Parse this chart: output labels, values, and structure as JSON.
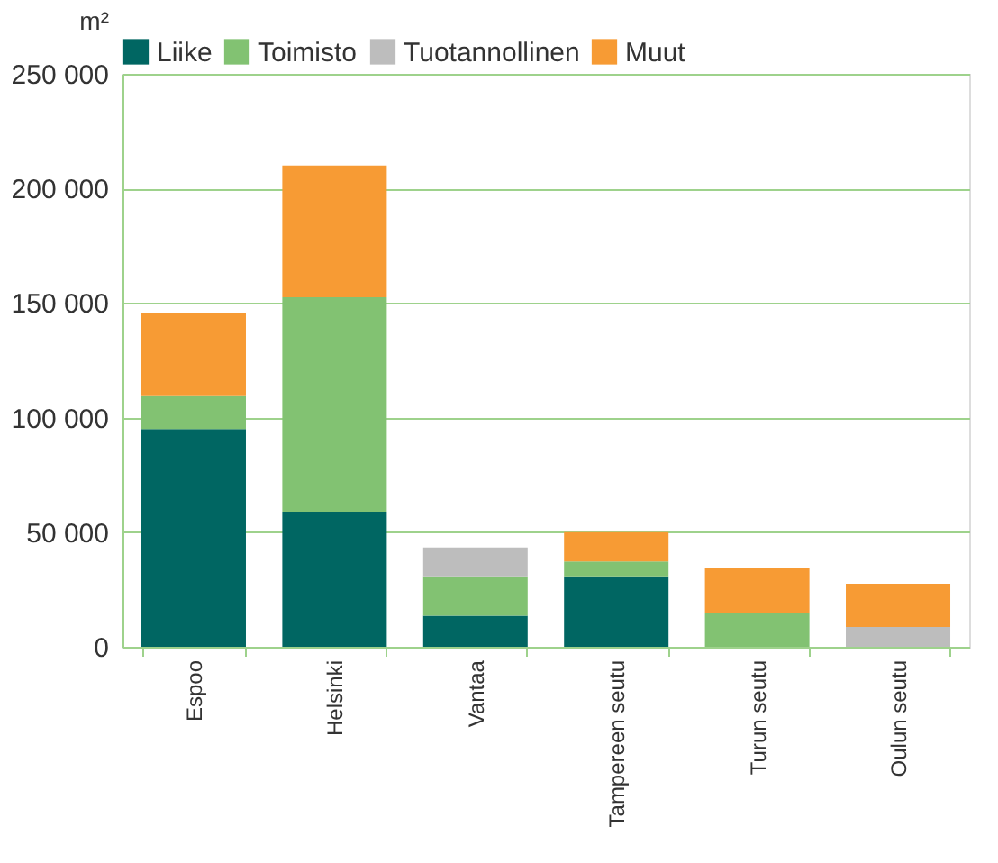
{
  "chart_data": {
    "type": "bar",
    "stacked": true,
    "ylabel": "m²",
    "categories": [
      "Espoo",
      "Helsinki",
      "Vantaa",
      "Tampereen seutu",
      "Turun seutu",
      "Oulun seutu"
    ],
    "series": [
      {
        "name": "Liike",
        "color": "#006662",
        "values": [
          95000,
          59000,
          13600,
          30800,
          0,
          0
        ]
      },
      {
        "name": "Toimisto",
        "color": "#82c272",
        "values": [
          14400,
          93500,
          17200,
          6400,
          14900,
          0
        ]
      },
      {
        "name": "Tuotannollinen",
        "color": "#bdbdbd",
        "values": [
          0,
          0,
          12500,
          0,
          0,
          8600
        ]
      },
      {
        "name": "Muut",
        "color": "#f79b34",
        "values": [
          36000,
          57500,
          0,
          12800,
          19500,
          18900
        ]
      }
    ],
    "ylim": [
      0,
      250000
    ],
    "yticks": [
      {
        "value": 0,
        "label": "0"
      },
      {
        "value": 50000,
        "label": "50 000"
      },
      {
        "value": 100000,
        "label": "100 000"
      },
      {
        "value": 150000,
        "label": "150 000"
      },
      {
        "value": 200000,
        "label": "200 000"
      },
      {
        "value": 250000,
        "label": "250 000"
      }
    ],
    "grid": "y",
    "legend": "top"
  }
}
